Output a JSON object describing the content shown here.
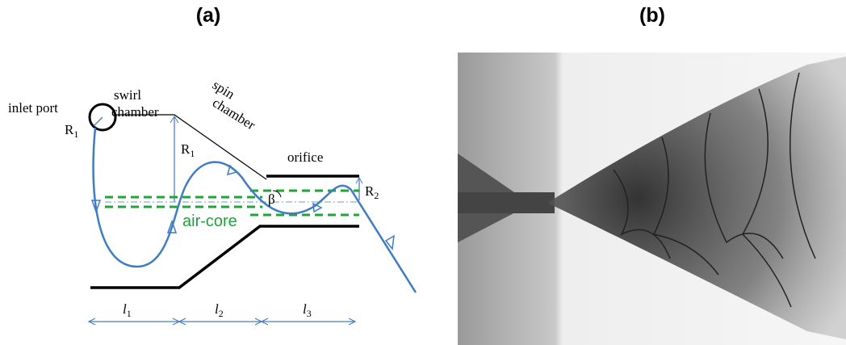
{
  "panel_a": {
    "title": "(a)",
    "inlet": "inlet port",
    "swirl": [
      "swirl",
      "chamber"
    ],
    "spin": [
      "spin",
      "chamber"
    ],
    "orifice": "orifice",
    "r1_circle": {
      "base": "R",
      "sub": "1"
    },
    "r1": {
      "base": "R",
      "sub": "1"
    },
    "r2": {
      "base": "R",
      "sub": "2"
    },
    "beta": "β",
    "air_core": "air-core",
    "lengths": [
      {
        "base": "l",
        "sub": "1"
      },
      {
        "base": "l",
        "sub": "2"
      },
      {
        "base": "l",
        "sub": "3"
      }
    ]
  },
  "panel_b": {
    "title": "(b)"
  }
}
